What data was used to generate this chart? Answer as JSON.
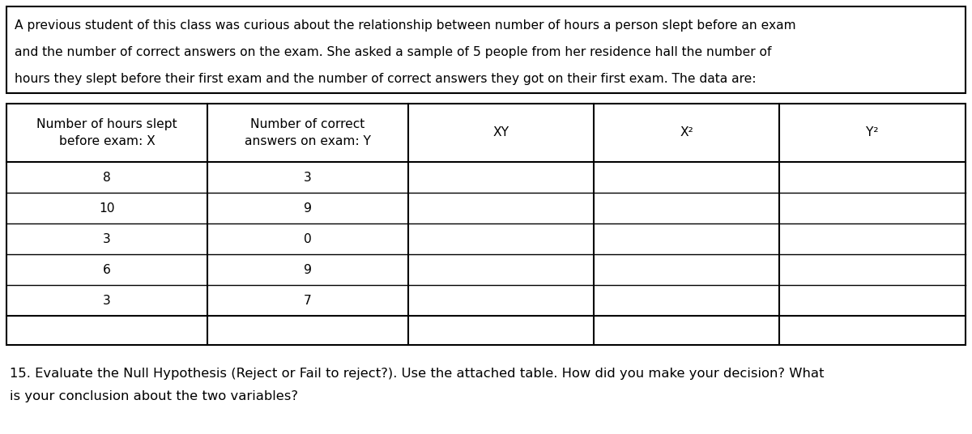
{
  "intro_text": "A previous student of this class was curious about the relationship between number of hours a person slept before an exam\nand the number of correct answers on the exam. She asked a sample of 5 people from her residence hall the number of\nhours they slept before their first exam and the number of correct answers they got on their first exam. The data are:",
  "col_headers": [
    "Number of hours slept\nbefore exam: X",
    "Number of correct\nanswers on exam: Y",
    "XY",
    "X²",
    "Y²"
  ],
  "data_rows": [
    [
      "8",
      "3",
      "",
      "",
      ""
    ],
    [
      "10",
      "9",
      "",
      "",
      ""
    ],
    [
      "3",
      "0",
      "",
      "",
      ""
    ],
    [
      "6",
      "9",
      "",
      "",
      ""
    ],
    [
      "3",
      "7",
      "",
      "",
      ""
    ]
  ],
  "sum_row": [
    "",
    "",
    "",
    "",
    ""
  ],
  "footer_text": "15. Evaluate the Null Hypothesis (Reject or Fail to reject?). Use the attached table. How did you make your decision? What\nis your conclusion about the two variables?",
  "bg_color": "#ffffff",
  "text_color": "#000000",
  "border_color": "#000000",
  "font_size_intro": 11.2,
  "font_size_table": 11.2,
  "font_size_footer": 11.8
}
